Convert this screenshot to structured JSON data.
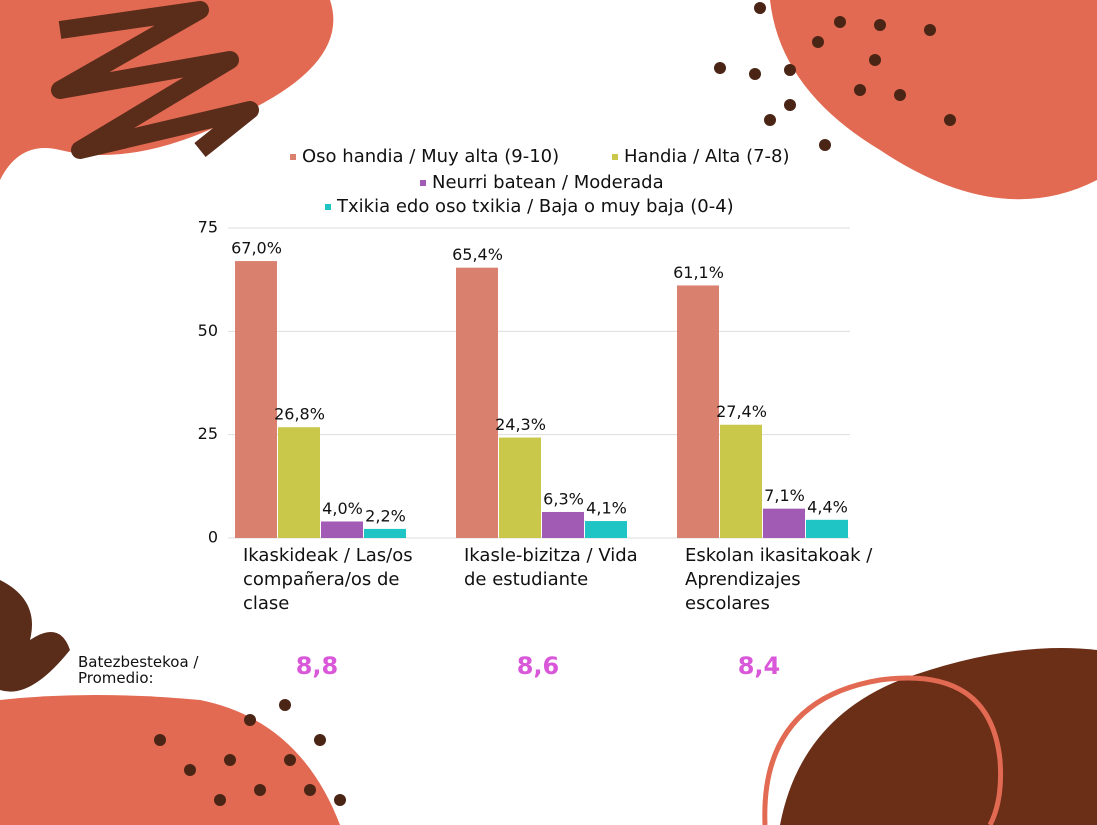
{
  "chart_data": {
    "type": "bar",
    "categories": [
      "Ikaskideak / Las/os compañera/os de clase",
      "Ikasle-bizitza / Vida de estudiante",
      "Eskolan ikasitakoak / Aprendizajes escolares"
    ],
    "series": [
      {
        "name": "Oso handia / Muy alta (9-10)",
        "color": "#d9806e",
        "values": [
          67.0,
          65.4,
          61.1
        ],
        "value_labels": [
          "67,0%",
          "65,4%",
          "61,1%"
        ]
      },
      {
        "name": "Handia / Alta  (7-8)",
        "color": "#c9c84a",
        "values": [
          26.8,
          24.3,
          27.4
        ],
        "value_labels": [
          "26,8%",
          "24,3%",
          "27,4%"
        ]
      },
      {
        "name": "Neurri batean / Moderada",
        "color": "#a15bb5",
        "values": [
          4.0,
          6.3,
          7.1
        ],
        "value_labels": [
          "4,0%",
          "6,3%",
          "7,1%"
        ]
      },
      {
        "name": "Txikia edo oso txikia / Baja o muy baja (0-4)",
        "color": "#1fc4c4",
        "values": [
          2.2,
          4.1,
          4.4
        ],
        "value_labels": [
          "2,2%",
          "4,1%",
          "4,4%"
        ]
      }
    ],
    "ylim": [
      0,
      75
    ],
    "yticks": [
      0,
      25,
      50,
      75
    ],
    "grid": true,
    "legend": "top"
  },
  "averages": {
    "label": "Batezbestekoa / Promedio:",
    "values": [
      "8,8",
      "8,6",
      "8,4"
    ]
  }
}
